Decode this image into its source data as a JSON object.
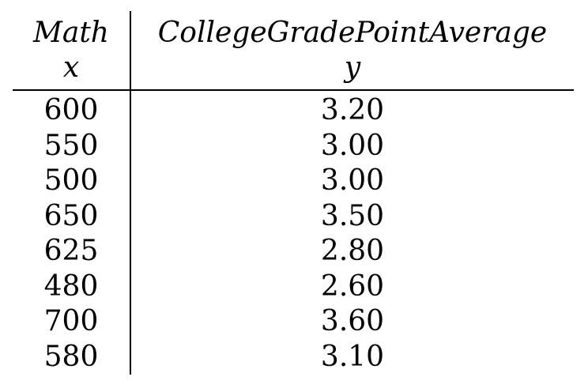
{
  "table": {
    "headers": {
      "col1_name": "Math",
      "col1_var": "x",
      "col2_name": "CollegeGradePointAverage",
      "col2_var": "y"
    },
    "rows": [
      {
        "x": "600",
        "y": "3.20"
      },
      {
        "x": "550",
        "y": "3.00"
      },
      {
        "x": "500",
        "y": "3.00"
      },
      {
        "x": "650",
        "y": "3.50"
      },
      {
        "x": "625",
        "y": "2.80"
      },
      {
        "x": "480",
        "y": "2.60"
      },
      {
        "x": "700",
        "y": "3.60"
      },
      {
        "x": "580",
        "y": "3.10"
      }
    ]
  }
}
